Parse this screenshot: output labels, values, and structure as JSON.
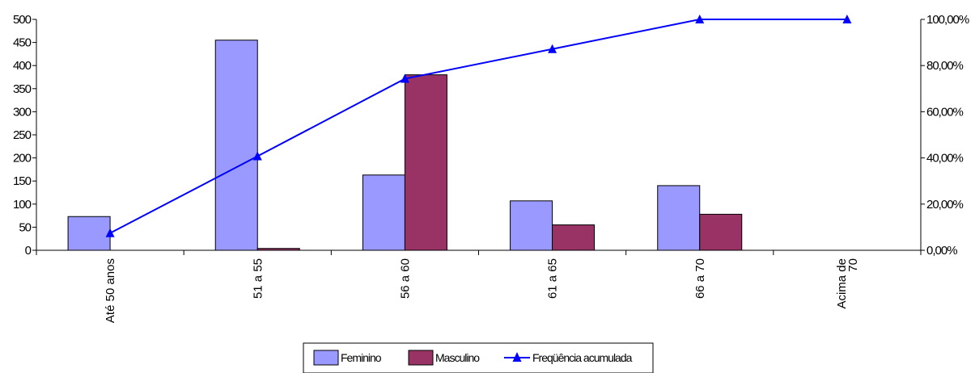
{
  "chart_data": {
    "type": "bar",
    "categories": [
      "Até 50 anos",
      "51 a 55",
      "56 a 60",
      "61 a 65",
      "66 a 70",
      "Acima de 70"
    ],
    "category_lines": [
      [
        "Até 50 anos"
      ],
      [
        "51 a 55"
      ],
      [
        "56 a 60"
      ],
      [
        "61 a 65"
      ],
      [
        "66 a 70"
      ],
      [
        "Acima de",
        "70"
      ]
    ],
    "series": [
      {
        "name": "Feminino",
        "type": "bar",
        "axis": "left",
        "color": "#9999ff",
        "values": [
          73,
          455,
          163,
          107,
          140,
          0
        ]
      },
      {
        "name": "Masculino",
        "type": "bar",
        "axis": "left",
        "color": "#993366",
        "values": [
          0,
          4,
          380,
          55,
          78,
          0
        ]
      },
      {
        "name": "Freqüência acumulada",
        "type": "line",
        "axis": "right",
        "color": "#0000ff",
        "values": [
          0.0744,
          0.4073,
          0.7428,
          0.8715,
          1.0,
          1.0
        ]
      }
    ],
    "y_left": {
      "min": 0,
      "max": 500,
      "step": 50,
      "tick_labels": [
        "0",
        "50",
        "100",
        "150",
        "200",
        "250",
        "300",
        "350",
        "400",
        "450",
        "500"
      ]
    },
    "y_right": {
      "min": 0,
      "max": 1,
      "step": 0.2,
      "tick_labels": [
        "0,00%",
        "20,00%",
        "40,00%",
        "60,00%",
        "80,00%",
        "100,00%"
      ]
    },
    "title": "",
    "xlabel": "",
    "ylabel": "",
    "grid": false,
    "legend_position": "bottom"
  }
}
